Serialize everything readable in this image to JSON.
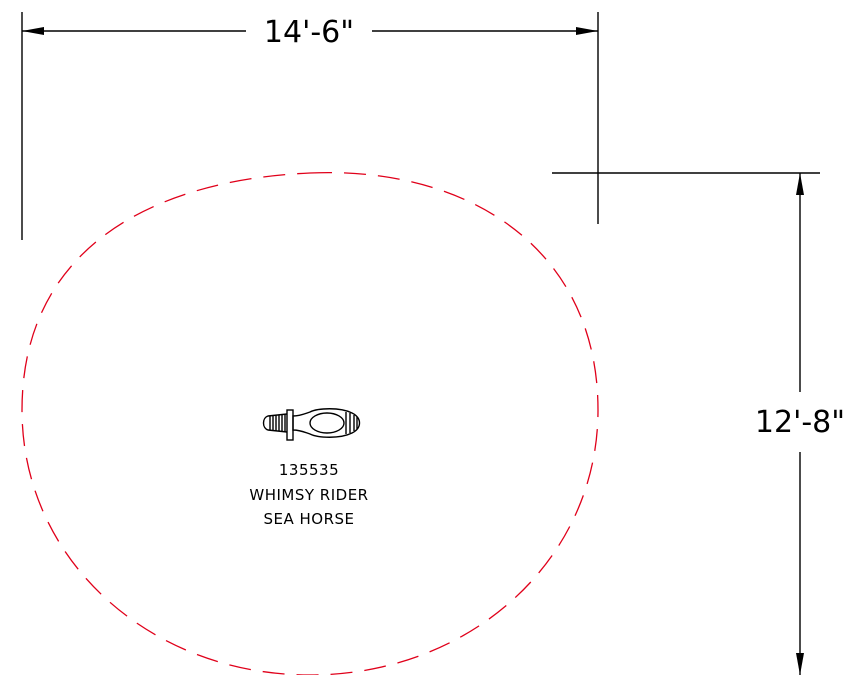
{
  "dimensions": {
    "width_label": "14'-6\"",
    "height_label": "12'-8\""
  },
  "product": {
    "number": "135535",
    "name_line1": "WHIMSY RIDER",
    "name_line2": "SEA HORSE"
  },
  "colors": {
    "use_zone": "#e0001a",
    "lines": "#000000"
  }
}
